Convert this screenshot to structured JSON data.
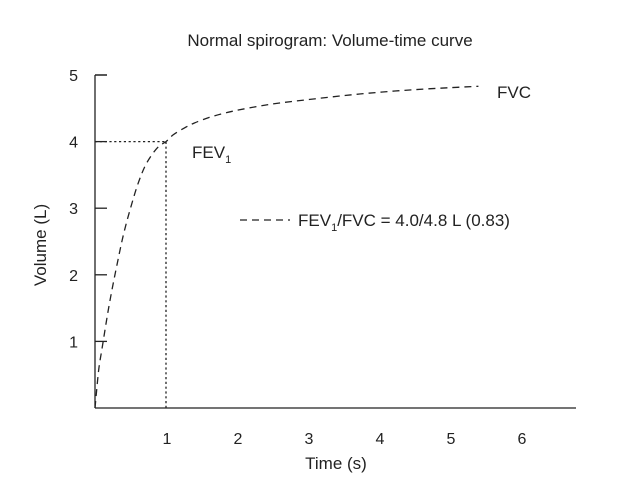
{
  "chart_data": {
    "type": "line",
    "title": "Normal spirogram: Volume-time curve",
    "xlabel": "Time (s)",
    "ylabel": "Volume (L)",
    "xlim": [
      0,
      6.9
    ],
    "ylim": [
      0,
      5
    ],
    "x_ticks": [
      1,
      2,
      3,
      4,
      5,
      6
    ],
    "y_ticks": [
      1,
      2,
      3,
      4,
      5
    ],
    "grid": false,
    "colors": {
      "axis": "#222222",
      "curve": "#222222",
      "text": "#222222"
    },
    "series": [
      {
        "name": "Volume-time curve",
        "style": "dashed",
        "x": [
          0,
          0.05,
          0.1,
          0.2,
          0.3,
          0.4,
          0.5,
          0.6,
          0.7,
          0.8,
          0.9,
          1.0,
          1.1,
          1.25,
          1.4,
          1.6,
          1.8,
          2.0,
          2.3,
          2.6,
          3.0,
          3.5,
          4.0,
          4.5,
          5.0,
          5.4
        ],
        "y": [
          0,
          0.55,
          0.9,
          1.55,
          2.1,
          2.6,
          3.0,
          3.35,
          3.62,
          3.8,
          3.93,
          4.0,
          4.1,
          4.2,
          4.28,
          4.36,
          4.42,
          4.47,
          4.53,
          4.58,
          4.63,
          4.69,
          4.74,
          4.78,
          4.81,
          4.83
        ]
      }
    ],
    "reference_lines": [
      {
        "name": "fev1-horizontal",
        "orientation": "horizontal",
        "value": 4.0,
        "from": 0,
        "to": 1.0,
        "style": "dotted"
      },
      {
        "name": "fev1-vertical",
        "orientation": "vertical",
        "value": 1.0,
        "from": 0,
        "to": 4.0,
        "style": "dotted"
      }
    ],
    "annotations": {
      "fvc": {
        "text": "FVC",
        "x": 5.5,
        "y": 4.6
      },
      "fev1": {
        "text": "FEV",
        "sub": "1",
        "x": 1.35,
        "y": 3.6
      }
    },
    "legend": {
      "placement": "center-right",
      "text_main": "FEV",
      "text_sub": "1",
      "text_rest": "/FVC = 4.0/4.8 L (0.83)"
    }
  }
}
